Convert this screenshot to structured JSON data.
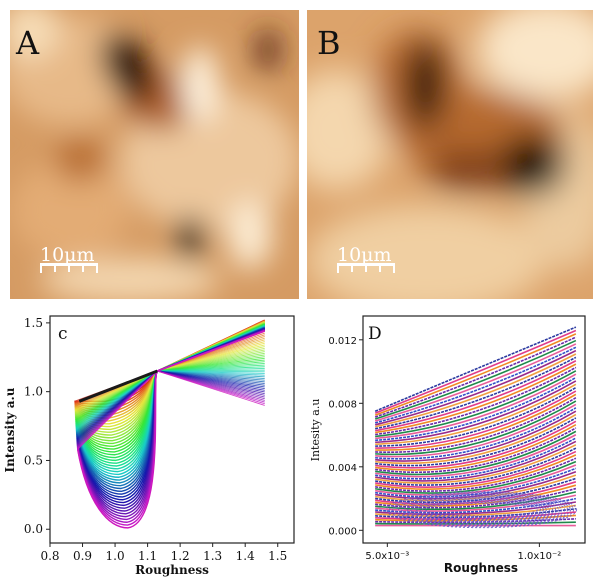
{
  "figure": {
    "panels": {
      "a": {
        "letter": "A",
        "scale_bar": "10μm"
      },
      "b": {
        "letter": "B",
        "scale_bar": "10μm"
      },
      "c": {
        "letter": "c"
      },
      "d": {
        "letter": "D"
      }
    },
    "colors": {
      "afm_dark": "#1a0a05",
      "afm_mid": "#c8783a",
      "afm_light": "#fbe9cf"
    }
  },
  "chart_data": [
    {
      "panel": "c",
      "type": "line",
      "xlabel": "Roughness",
      "ylabel": "Intensity a.u",
      "xlim": [
        0.8,
        1.55
      ],
      "ylim": [
        -0.1,
        1.55
      ],
      "xticks": [
        "0.8",
        "0.9",
        "1.0",
        "1.1",
        "1.2",
        "1.3",
        "1.4",
        "1.5"
      ],
      "yticks": [
        "0.0",
        "0.5",
        "1.0",
        "1.5"
      ],
      "crossing_point": [
        1.13,
        1.15
      ]
    },
    {
      "panel": "d",
      "type": "line",
      "xlabel": "Roughness",
      "ylabel": "Intesity a.u",
      "xlim": [
        0.0042,
        0.0115
      ],
      "ylim": [
        -0.0008,
        0.0135
      ],
      "xticks": [
        "5.0x10⁻³",
        "1.0x10⁻²"
      ],
      "yticks": [
        "0.000",
        "0.004",
        "0.008",
        "0.012"
      ]
    }
  ]
}
